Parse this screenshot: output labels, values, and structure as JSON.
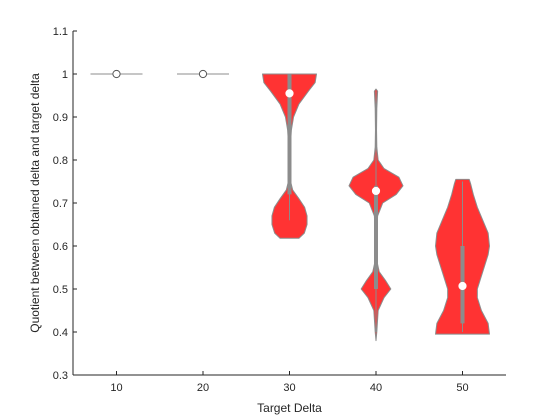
{
  "chart_data": {
    "type": "violin",
    "xlabel": "Target Delta",
    "ylabel": "Quotient between obtained delta and target delta",
    "categories": [
      "10",
      "20",
      "30",
      "40",
      "50"
    ],
    "ylim": [
      0.3,
      1.1
    ],
    "yticks": [
      "0.3",
      "0.4",
      "0.5",
      "0.6",
      "0.7",
      "0.8",
      "0.9",
      "1",
      "1.1"
    ],
    "grid": false,
    "colors": {
      "violin_fill": "#ff3333",
      "violin_edge": "#8c8c8c",
      "box": "#8c8c8c",
      "median_marker": "#ffffff",
      "axis": "#262626"
    },
    "violins": [
      {
        "category": "10",
        "median": 1.0,
        "iqr": [
          1.0,
          1.0
        ],
        "whiskers": [
          1.0,
          1.0
        ],
        "degenerate": true,
        "density": []
      },
      {
        "category": "20",
        "median": 1.0,
        "iqr": [
          1.0,
          1.0
        ],
        "whiskers": [
          1.0,
          1.0
        ],
        "degenerate": true,
        "density": []
      },
      {
        "category": "30",
        "median": 0.955,
        "iqr": [
          0.72,
          1.0
        ],
        "whiskers": [
          0.66,
          1.0
        ],
        "degenerate": false,
        "density": [
          [
            0.618,
            0.35
          ],
          [
            0.63,
            0.55
          ],
          [
            0.65,
            0.65
          ],
          [
            0.67,
            0.65
          ],
          [
            0.69,
            0.56
          ],
          [
            0.71,
            0.35
          ],
          [
            0.73,
            0.12
          ],
          [
            0.75,
            0.04
          ],
          [
            0.78,
            0.02
          ],
          [
            0.81,
            0.02
          ],
          [
            0.84,
            0.04
          ],
          [
            0.87,
            0.07
          ],
          [
            0.9,
            0.15
          ],
          [
            0.93,
            0.35
          ],
          [
            0.96,
            0.7
          ],
          [
            0.98,
            0.95
          ],
          [
            1.0,
            1.0
          ]
        ]
      },
      {
        "category": "40",
        "median": 0.728,
        "iqr": [
          0.5,
          0.74
        ],
        "whiskers": [
          0.4,
          0.96
        ],
        "degenerate": false,
        "density": [
          [
            0.38,
            0.0
          ],
          [
            0.4,
            0.03
          ],
          [
            0.42,
            0.05
          ],
          [
            0.45,
            0.08
          ],
          [
            0.48,
            0.3
          ],
          [
            0.5,
            0.55
          ],
          [
            0.52,
            0.35
          ],
          [
            0.54,
            0.12
          ],
          [
            0.56,
            0.05
          ],
          [
            0.6,
            0.03
          ],
          [
            0.64,
            0.04
          ],
          [
            0.67,
            0.06
          ],
          [
            0.7,
            0.25
          ],
          [
            0.72,
            0.75
          ],
          [
            0.74,
            1.0
          ],
          [
            0.76,
            0.85
          ],
          [
            0.78,
            0.3
          ],
          [
            0.8,
            0.08
          ],
          [
            0.83,
            0.03
          ],
          [
            0.87,
            0.02
          ],
          [
            0.92,
            0.03
          ],
          [
            0.96,
            0.06
          ],
          [
            0.965,
            0.0
          ]
        ]
      },
      {
        "category": "50",
        "median": 0.507,
        "iqr": [
          0.42,
          0.6
        ],
        "whiskers": [
          0.4,
          0.75
        ],
        "degenerate": false,
        "density": [
          [
            0.395,
            1.0
          ],
          [
            0.42,
            0.95
          ],
          [
            0.45,
            0.7
          ],
          [
            0.48,
            0.55
          ],
          [
            0.5,
            0.55
          ],
          [
            0.52,
            0.65
          ],
          [
            0.55,
            0.8
          ],
          [
            0.58,
            0.95
          ],
          [
            0.6,
            1.0
          ],
          [
            0.63,
            0.95
          ],
          [
            0.66,
            0.75
          ],
          [
            0.69,
            0.55
          ],
          [
            0.72,
            0.4
          ],
          [
            0.745,
            0.3
          ],
          [
            0.755,
            0.25
          ]
        ]
      }
    ]
  }
}
